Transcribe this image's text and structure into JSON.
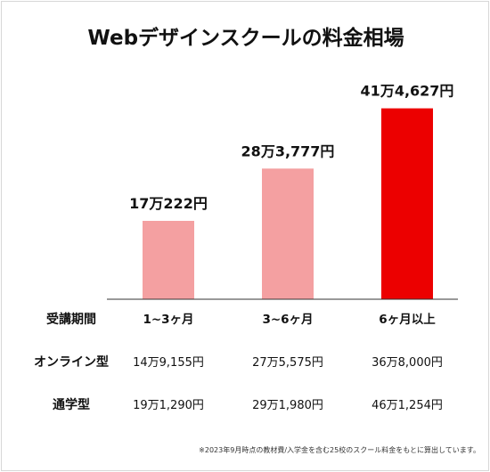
{
  "colors": {
    "bar_light": "#f4a0a1",
    "bar_accent": "#ec0000",
    "axis": "#333333",
    "text": "#111111"
  },
  "chart_data": {
    "type": "bar",
    "title": "Webデザインスクールの料金相場",
    "categories": [
      "1~3ヶ月",
      "3~6ヶ月",
      "6ヶ月以上"
    ],
    "values": [
      170222,
      283777,
      414627
    ],
    "value_labels": [
      "17万222円",
      "28万3,777円",
      "41万4,627円"
    ],
    "bar_colors": [
      "#f4a0a1",
      "#f4a0a1",
      "#ec0000"
    ],
    "ylim": [
      0,
      530000
    ],
    "grid": false,
    "xlabel": "",
    "ylabel": ""
  },
  "table": {
    "header": "受講期間",
    "rows": [
      {
        "label": "オンライン型",
        "cells": [
          "14万9,155円",
          "27万5,575円",
          "36万8,000円"
        ]
      },
      {
        "label": "通学型",
        "cells": [
          "19万1,290円",
          "29万1,980円",
          "46万1,254円"
        ]
      }
    ]
  },
  "footnote": "※2023年9月時点の教材費/入学金を含む25校のスクール料金をもとに算出しています。"
}
